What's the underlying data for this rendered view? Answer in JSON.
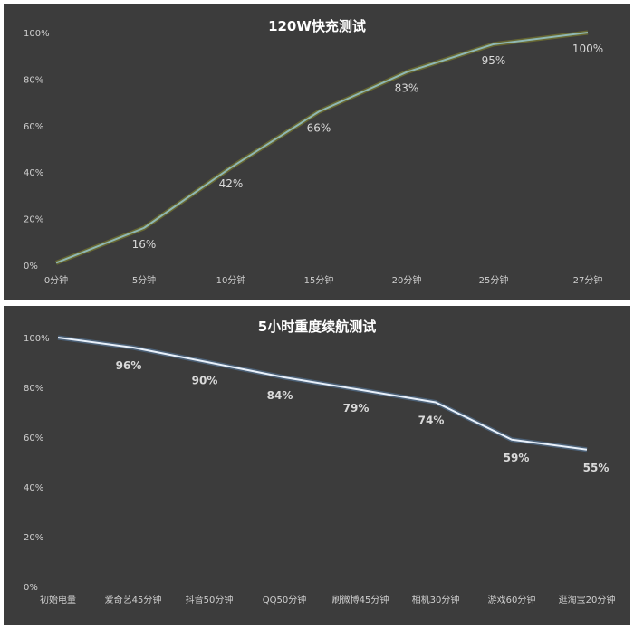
{
  "chart_data": [
    {
      "type": "line",
      "title": "120W快充测试",
      "categories": [
        "0分钟",
        "5分钟",
        "10分钟",
        "15分钟",
        "20分钟",
        "25分钟",
        "27分钟"
      ],
      "values": [
        1,
        16,
        42,
        66,
        83,
        95,
        100
      ],
      "data_labels": [
        "",
        "16%",
        "42%",
        "66%",
        "83%",
        "95%",
        "100%"
      ],
      "y_ticks": [
        "0%",
        "20%",
        "40%",
        "60%",
        "80%",
        "100%"
      ],
      "ylim": [
        0,
        100
      ],
      "grid": false,
      "colors": {
        "background": "#3c3c3c",
        "line": "#8fb8b4",
        "glow": "#8a8a2a"
      }
    },
    {
      "type": "line",
      "title": "5小时重度续航测试",
      "categories": [
        "初始电量",
        "爱奇艺45分钟",
        "抖音50分钟",
        "QQ50分钟",
        "刷微博45分钟",
        "相机30分钟",
        "游戏60分钟",
        "逛淘宝20分钟"
      ],
      "values": [
        100,
        96,
        90,
        84,
        79,
        74,
        59,
        55
      ],
      "data_labels": [
        "",
        "96%",
        "90%",
        "84%",
        "79%",
        "74%",
        "59%",
        "55%"
      ],
      "y_ticks": [
        "0%",
        "20%",
        "40%",
        "60%",
        "80%",
        "100%"
      ],
      "ylim": [
        0,
        100
      ],
      "grid": false,
      "colors": {
        "background": "#3c3c3c",
        "line": "#e8f0fa",
        "glow": "#5a7fa8"
      }
    }
  ]
}
